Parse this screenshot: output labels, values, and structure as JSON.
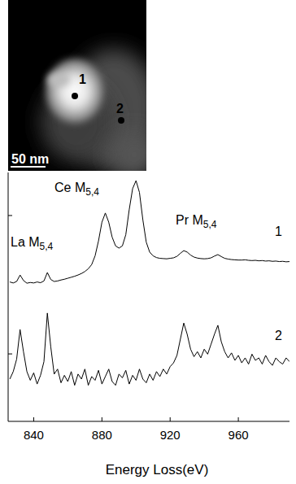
{
  "chart_data": {
    "type": "line",
    "x_label": "Energy Loss(eV)",
    "xlim": [
      825,
      990
    ],
    "xticks": [
      840,
      880,
      920,
      960
    ],
    "ylim": [
      0,
      100
    ],
    "yticks": [
      27.1,
      82.7
    ],
    "tick_labels": "x",
    "annotations": [
      {
        "text": "La M",
        "subscript": "5,4"
      },
      {
        "text": "Ce M",
        "subscript": "5,4"
      },
      {
        "text": "Pr M",
        "subscript": "5,4"
      }
    ],
    "inset": {
      "markers": [
        "1",
        "2"
      ],
      "scale_bar": "50 nm"
    },
    "x": [
      826,
      828,
      830,
      832,
      834,
      836,
      838,
      840,
      842,
      844,
      846,
      848,
      850,
      852,
      854,
      856,
      858,
      860,
      862,
      864,
      866,
      868,
      870,
      872,
      874,
      876,
      878,
      880,
      882,
      884,
      886,
      888,
      890,
      892,
      894,
      896,
      898,
      900,
      902,
      904,
      906,
      908,
      910,
      912,
      914,
      916,
      918,
      920,
      922,
      924,
      926,
      928,
      930,
      932,
      934,
      936,
      938,
      940,
      942,
      944,
      946,
      948,
      950,
      952,
      954,
      956,
      958,
      960,
      962,
      964,
      966,
      968,
      970,
      972,
      974,
      976,
      978,
      980,
      982,
      984,
      986,
      988,
      990
    ],
    "series": [
      {
        "name": "1",
        "color": "#000000",
        "values": [
          56.0,
          55.6,
          56.2,
          58.8,
          56.6,
          55.5,
          55.8,
          55.6,
          56.0,
          55.7,
          56.4,
          59.8,
          57.0,
          56.2,
          56.4,
          56.8,
          57.1,
          57.5,
          57.9,
          58.3,
          58.8,
          59.4,
          60.2,
          61.3,
          63.0,
          66.5,
          72.5,
          80.0,
          83.7,
          80.0,
          74.0,
          70.5,
          69.6,
          70.5,
          75.0,
          85.0,
          93.5,
          96.7,
          92.0,
          81.0,
          72.0,
          68.0,
          66.5,
          65.8,
          65.5,
          65.4,
          65.3,
          65.5,
          65.7,
          66.3,
          67.5,
          68.6,
          68.0,
          66.8,
          66.0,
          65.6,
          65.4,
          65.3,
          65.4,
          65.7,
          66.4,
          67.0,
          66.2,
          65.5,
          65.2,
          65.0,
          64.9,
          64.8,
          64.8,
          64.9,
          64.7,
          64.6,
          64.7,
          64.5,
          64.6,
          64.4,
          64.5,
          64.3,
          64.4,
          64.2,
          64.3,
          64.1,
          64.2
        ]
      },
      {
        "name": "2",
        "color": "#000000",
        "values": [
          17.0,
          20.0,
          25.0,
          36.9,
          28.0,
          20.0,
          16.5,
          19.5,
          15.0,
          18.5,
          24.0,
          43.5,
          30.0,
          19.0,
          21.0,
          15.5,
          18.5,
          16.0,
          20.0,
          14.5,
          19.0,
          17.0,
          21.0,
          14.5,
          18.0,
          16.5,
          20.5,
          15.0,
          18.0,
          21.0,
          16.0,
          14.5,
          19.0,
          17.5,
          20.5,
          15.0,
          18.5,
          16.5,
          21.0,
          17.0,
          15.5,
          19.0,
          16.5,
          20.0,
          18.0,
          21.0,
          19.0,
          22.0,
          23.5,
          26.5,
          33.0,
          39.5,
          35.0,
          29.0,
          26.0,
          28.0,
          25.5,
          29.0,
          27.0,
          31.0,
          35.0,
          38.6,
          32.0,
          28.0,
          25.5,
          27.5,
          24.5,
          26.5,
          23.5,
          25.5,
          23.0,
          27.0,
          24.5,
          25.5,
          23.0,
          26.5,
          24.0,
          22.5,
          25.5,
          24.0,
          23.0,
          25.5,
          24.0
        ]
      }
    ]
  }
}
